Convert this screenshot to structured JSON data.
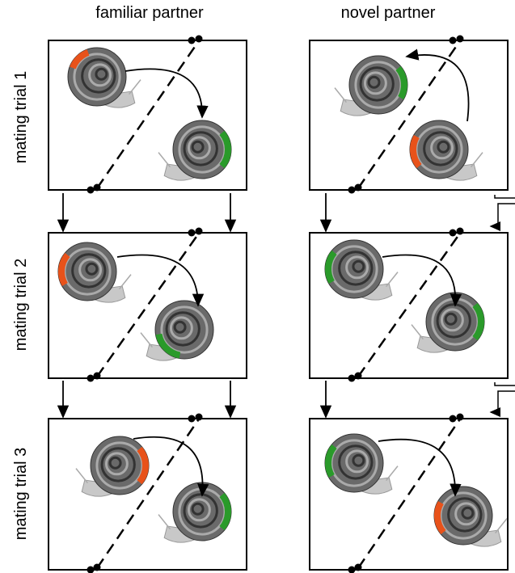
{
  "header": {
    "columns": [
      "familiar partner",
      "novel partner"
    ]
  },
  "rows": [
    "mating trial 1",
    "mating trial 2",
    "mating trial 3"
  ]
}
